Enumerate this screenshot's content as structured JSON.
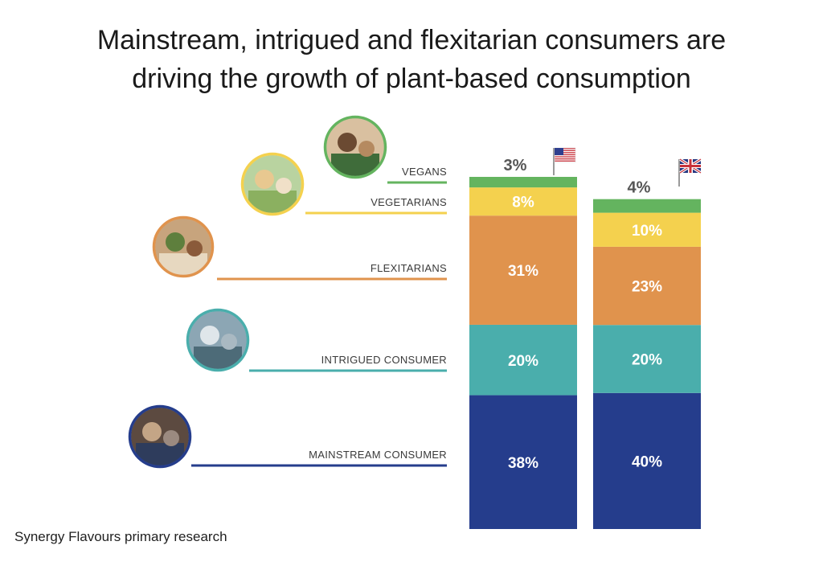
{
  "title_lines": [
    "Mainstream, intrigued and flexitarian consumers are",
    "driving the growth of plant-based consumption"
  ],
  "footnote": "Synergy Flavours primary research",
  "chart_data": {
    "type": "bar",
    "stacked": true,
    "orientation": "vertical",
    "columns": [
      "US",
      "UK"
    ],
    "column_markers": [
      "us-flag-icon",
      "uk-flag-icon"
    ],
    "series": [
      {
        "name": "MAINSTREAM CONSUMER",
        "color": "#253d8c",
        "label_color": "#ffffff",
        "values": [
          38,
          40
        ],
        "labels": [
          "38%",
          "40%"
        ]
      },
      {
        "name": "INTRIGUED CONSUMER",
        "color": "#4aaeac",
        "label_color": "#ffffff",
        "values": [
          20,
          20
        ],
        "labels": [
          "20%",
          "20%"
        ]
      },
      {
        "name": "FLEXITARIANS",
        "color": "#e0934d",
        "label_color": "#ffffff",
        "values": [
          31,
          23
        ],
        "labels": [
          "31%",
          "23%"
        ]
      },
      {
        "name": "VEGETARIANS",
        "color": "#f4d14e",
        "label_color": "#ffffff",
        "values": [
          8,
          10
        ],
        "labels": [
          "8%",
          "10%"
        ]
      },
      {
        "name": "VEGANS",
        "color": "#64b45f",
        "label_color": "#555555",
        "values": [
          3,
          4
        ],
        "labels": [
          "3%",
          "4%"
        ],
        "label_above": true
      }
    ],
    "photo_icons": [
      "vegans-photo-icon",
      "vegetarians-photo-icon",
      "flexitarians-photo-icon",
      "intrigued-consumer-photo-icon",
      "mainstream-consumer-photo-icon"
    ]
  }
}
